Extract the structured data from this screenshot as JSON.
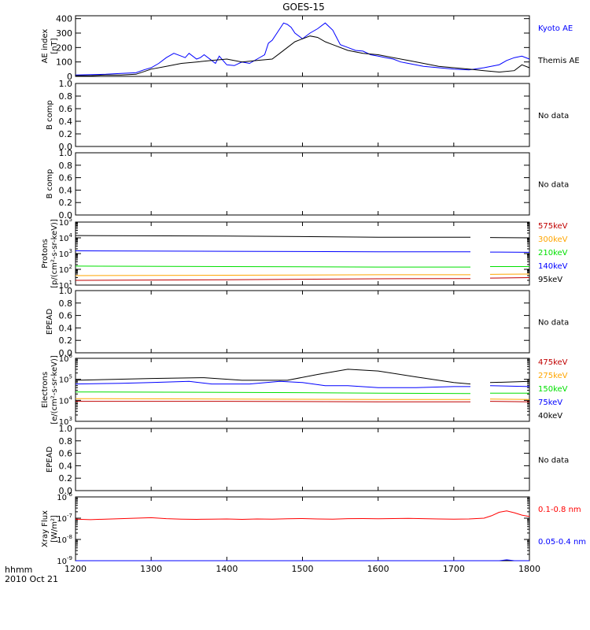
{
  "title": "GOES-15",
  "footer": {
    "line1": "hhmm",
    "line2": "2010 Oct 21"
  },
  "x_axis": {
    "min": 1200,
    "max": 1800,
    "ticks": [
      "1200",
      "1300",
      "1400",
      "1500",
      "1600",
      "1700",
      "1800"
    ],
    "tick_values": [
      1200,
      1300,
      1400,
      1500,
      1600,
      1700,
      1800
    ]
  },
  "colors": {
    "black": "#000000",
    "blue": "#0000ff",
    "green": "#00e000",
    "orange": "#ffa500",
    "red": "#ff0000",
    "darkred": "#c00000"
  },
  "chart_data": [
    {
      "panel": "ae",
      "type": "line",
      "ylabel": [
        "AE index",
        "[nT]"
      ],
      "ylim": [
        0,
        420
      ],
      "yticks": [
        "0",
        "100",
        "200",
        "300",
        "400"
      ],
      "ytick_values": [
        0,
        100,
        200,
        300,
        400
      ],
      "legend": [
        {
          "name": "Kyoto AE",
          "color": "#0000ff"
        },
        {
          "name": "Themis AE",
          "color": "#000000"
        }
      ],
      "series": [
        {
          "name": "Kyoto AE",
          "color": "#0000ff",
          "x": [
            1200,
            1220,
            1240,
            1260,
            1280,
            1290,
            1300,
            1310,
            1320,
            1330,
            1340,
            1345,
            1350,
            1360,
            1365,
            1370,
            1380,
            1385,
            1390,
            1400,
            1410,
            1420,
            1430,
            1440,
            1450,
            1455,
            1460,
            1470,
            1475,
            1480,
            1485,
            1490,
            1500,
            1510,
            1520,
            1530,
            1540,
            1545,
            1550,
            1560,
            1570,
            1580,
            1590,
            1600,
            1610,
            1620,
            1630,
            1640,
            1660,
            1680,
            1700,
            1720,
            1740,
            1760,
            1770,
            1780,
            1790,
            1800
          ],
          "y": [
            10,
            12,
            15,
            20,
            25,
            45,
            60,
            90,
            130,
            160,
            140,
            130,
            160,
            120,
            130,
            150,
            110,
            90,
            140,
            80,
            75,
            100,
            90,
            120,
            150,
            230,
            250,
            330,
            370,
            360,
            340,
            300,
            260,
            300,
            330,
            370,
            320,
            270,
            220,
            200,
            180,
            175,
            150,
            140,
            130,
            120,
            100,
            90,
            70,
            60,
            50,
            45,
            60,
            80,
            110,
            130,
            140,
            120
          ]
        },
        {
          "name": "Themis AE",
          "color": "#000000",
          "x": [
            1200,
            1220,
            1240,
            1260,
            1280,
            1300,
            1320,
            1340,
            1360,
            1380,
            1400,
            1420,
            1440,
            1460,
            1470,
            1480,
            1490,
            1500,
            1510,
            1520,
            1530,
            1540,
            1560,
            1580,
            1600,
            1620,
            1640,
            1660,
            1680,
            1700,
            1720,
            1740,
            1760,
            1780,
            1790,
            1800
          ],
          "y": [
            5,
            5,
            10,
            10,
            15,
            50,
            70,
            90,
            100,
            110,
            120,
            100,
            110,
            120,
            160,
            200,
            240,
            260,
            280,
            270,
            240,
            220,
            180,
            160,
            150,
            130,
            110,
            90,
            70,
            60,
            50,
            40,
            30,
            40,
            80,
            60
          ]
        }
      ]
    },
    {
      "panel": "bcomp1",
      "type": "line",
      "ylabel": [
        "B comp"
      ],
      "ylim": [
        0,
        1
      ],
      "yticks": [
        "0.0",
        "0.2",
        "0.4",
        "0.6",
        "0.8",
        "1.0"
      ],
      "ytick_values": [
        0,
        0.2,
        0.4,
        0.6,
        0.8,
        1.0
      ],
      "nodata": "No data",
      "series": []
    },
    {
      "panel": "bcomp2",
      "type": "line",
      "ylabel": [
        "B comp"
      ],
      "ylim": [
        0,
        1
      ],
      "yticks": [
        "0.0",
        "0.2",
        "0.4",
        "0.6",
        "0.8",
        "1.0"
      ],
      "ytick_values": [
        0,
        0.2,
        0.4,
        0.6,
        0.8,
        1.0
      ],
      "nodata": "No data",
      "series": []
    },
    {
      "panel": "protons",
      "type": "line",
      "yscale": "log",
      "ylabel": [
        "Protons",
        "[p/(cm²-s-sr-keV)]"
      ],
      "ylim_exp": [
        1,
        5
      ],
      "yticks_exp": [
        1,
        2,
        3,
        4,
        5
      ],
      "legend": [
        {
          "name": "575keV",
          "color": "#c00000"
        },
        {
          "name": "300keV",
          "color": "#ffa500"
        },
        {
          "name": "210keV",
          "color": "#00e000"
        },
        {
          "name": "140keV",
          "color": "#0000ff"
        },
        {
          "name": "95keV",
          "color": "#000000"
        }
      ],
      "gap": [
        1722,
        1748
      ],
      "series": [
        {
          "name": "95keV",
          "color": "#000000",
          "x": [
            1200,
            1400,
            1600,
            1722,
            1748,
            1800
          ],
          "y": [
            14000,
            13000,
            11000,
            11000,
            10500,
            10000
          ]
        },
        {
          "name": "140keV",
          "color": "#0000ff",
          "x": [
            1200,
            1400,
            1600,
            1722,
            1748,
            1800
          ],
          "y": [
            1500,
            1400,
            1300,
            1300,
            1250,
            1200
          ]
        },
        {
          "name": "210keV",
          "color": "#00e000",
          "x": [
            1200,
            1400,
            1600,
            1722,
            1748,
            1800
          ],
          "y": [
            160,
            150,
            140,
            140,
            150,
            150
          ]
        },
        {
          "name": "300keV",
          "color": "#ffa500",
          "x": [
            1200,
            1400,
            1600,
            1722,
            1748,
            1800
          ],
          "y": [
            40,
            42,
            45,
            45,
            48,
            50
          ]
        },
        {
          "name": "575keV",
          "color": "#c00000",
          "x": [
            1200,
            1400,
            1600,
            1722,
            1748,
            1800
          ],
          "y": [
            20,
            22,
            25,
            26,
            28,
            30
          ]
        }
      ]
    },
    {
      "panel": "epead1",
      "type": "line",
      "ylabel": [
        "EPEAD"
      ],
      "ylim": [
        0,
        1
      ],
      "yticks": [
        "0.0",
        "0.2",
        "0.4",
        "0.6",
        "0.8",
        "1.0"
      ],
      "ytick_values": [
        0,
        0.2,
        0.4,
        0.6,
        0.8,
        1.0
      ],
      "nodata": "No data",
      "series": []
    },
    {
      "panel": "electrons",
      "type": "line",
      "yscale": "log",
      "ylabel": [
        "Electrons",
        "[e/(cm²-s-sr-keV)]"
      ],
      "ylim_exp": [
        3,
        6
      ],
      "yticks_exp": [
        3,
        4,
        5,
        6
      ],
      "legend": [
        {
          "name": "475keV",
          "color": "#c00000"
        },
        {
          "name": "275keV",
          "color": "#ffa500"
        },
        {
          "name": "150keV",
          "color": "#00e000"
        },
        {
          "name": "75keV",
          "color": "#0000ff"
        },
        {
          "name": "40keV",
          "color": "#000000"
        }
      ],
      "gap": [
        1722,
        1748
      ],
      "series": [
        {
          "name": "40keV",
          "color": "#000000",
          "x": [
            1200,
            1250,
            1300,
            1370,
            1420,
            1480,
            1520,
            1560,
            1600,
            1650,
            1700,
            1722,
            1748,
            1800
          ],
          "y": [
            90000,
            100000,
            110000,
            120000,
            90000,
            90000,
            170000,
            300000,
            250000,
            130000,
            70000,
            60000,
            70000,
            80000
          ]
        },
        {
          "name": "75keV",
          "color": "#0000ff",
          "x": [
            1200,
            1260,
            1300,
            1350,
            1380,
            1430,
            1470,
            1500,
            1530,
            1560,
            1600,
            1650,
            1700,
            1722,
            1748,
            1800
          ],
          "y": [
            60000,
            65000,
            70000,
            80000,
            60000,
            60000,
            80000,
            70000,
            50000,
            50000,
            40000,
            40000,
            45000,
            45000,
            50000,
            45000
          ]
        },
        {
          "name": "150keV",
          "color": "#00e000",
          "x": [
            1200,
            1400,
            1600,
            1722,
            1748,
            1800
          ],
          "y": [
            25000,
            24000,
            22000,
            21000,
            22000,
            22000
          ]
        },
        {
          "name": "275keV",
          "color": "#ffa500",
          "x": [
            1200,
            1400,
            1600,
            1722,
            1748,
            1800
          ],
          "y": [
            12000,
            11500,
            11000,
            11000,
            11500,
            11000
          ]
        },
        {
          "name": "475keV",
          "color": "#c00000",
          "x": [
            1200,
            1400,
            1600,
            1722,
            1748,
            1800
          ],
          "y": [
            9000,
            9000,
            8500,
            8500,
            9000,
            8500
          ]
        }
      ]
    },
    {
      "panel": "epead2",
      "type": "line",
      "ylabel": [
        "EPEAD"
      ],
      "ylim": [
        0,
        1
      ],
      "yticks": [
        "0.0",
        "0.2",
        "0.4",
        "0.6",
        "0.8",
        "1.0"
      ],
      "ytick_values": [
        0,
        0.2,
        0.4,
        0.6,
        0.8,
        1.0
      ],
      "nodata": "No data",
      "series": []
    },
    {
      "panel": "xray",
      "type": "line",
      "yscale": "log",
      "ylabel": [
        "Xray Flux",
        "[W/m²]"
      ],
      "ylim_exp": [
        -9,
        -6
      ],
      "yticks_exp": [
        -9,
        -8,
        -7,
        -6
      ],
      "legend": [
        {
          "name": "0.1-0.8 nm",
          "color": "#ff0000"
        },
        {
          "name": "0.05-0.4 nm",
          "color": "#0000ff"
        }
      ],
      "series": [
        {
          "name": "0.1-0.8 nm",
          "color": "#ff0000",
          "x": [
            1200,
            1220,
            1240,
            1260,
            1280,
            1300,
            1320,
            1340,
            1360,
            1380,
            1400,
            1420,
            1440,
            1460,
            1480,
            1500,
            1520,
            1540,
            1560,
            1580,
            1600,
            1620,
            1640,
            1660,
            1680,
            1700,
            1720,
            1740,
            1750,
            1760,
            1770,
            1780,
            1790,
            1800
          ],
          "y": [
            9e-08,
            8.5e-08,
            9e-08,
            9.5e-08,
            1e-07,
            1.05e-07,
            9.5e-08,
            9e-08,
            8.8e-08,
            9e-08,
            9.2e-08,
            8.8e-08,
            9.2e-08,
            9e-08,
            9.4e-08,
            9.6e-08,
            9.2e-08,
            9e-08,
            9.5e-08,
            9.6e-08,
            9.4e-08,
            9.6e-08,
            9.8e-08,
            9.5e-08,
            9.2e-08,
            9e-08,
            9.2e-08,
            1e-07,
            1.3e-07,
            1.9e-07,
            2.2e-07,
            1.8e-07,
            1.4e-07,
            1.2e-07
          ]
        },
        {
          "name": "0.05-0.4 nm",
          "color": "#0000ff",
          "x": [
            1200,
            1400,
            1600,
            1760,
            1770,
            1780,
            1800
          ],
          "y": [
            1e-09,
            1e-09,
            1e-09,
            1e-09,
            1.1e-09,
            1e-09,
            1e-09
          ]
        }
      ]
    }
  ]
}
